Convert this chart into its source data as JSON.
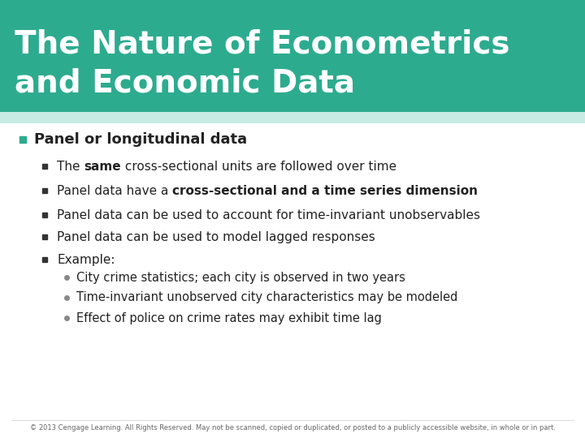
{
  "title_line1": "The Nature of Econometrics",
  "title_line2": "and Economic Data",
  "title_bg_color": "#2dab8f",
  "title_text_color": "#ffffff",
  "slide_bg_color": "#ffffff",
  "header_stripe_color": "#c8ebe4",
  "bullet_color": "#2dab8f",
  "sub_bullet_color": "#555555",
  "text_color": "#222222",
  "footer_text": "© 2013 Cengage Learning. All Rights Reserved. May not be scanned, copied or duplicated, or posted to a publicly accessible website, in whole or in part.",
  "main_bullet": "Panel or longitudinal data",
  "sub_bullets": [
    {
      "text": "The ",
      "bold_part": "same",
      "rest": " cross-sectional units are followed over time"
    },
    {
      "text": "Panel data have a ",
      "bold_part": "cross-sectional and a time series dimension",
      "rest": ""
    },
    {
      "text": "Panel data can be used to account for time-invariant unobservables",
      "bold_part": "",
      "rest": ""
    },
    {
      "text": "Panel data can be used to model lagged responses",
      "bold_part": "",
      "rest": ""
    },
    {
      "text": "Example:",
      "bold_part": "",
      "rest": ""
    }
  ],
  "sub_sub_bullets": [
    "City crime statistics; each city is observed in two years",
    "Time-invariant unobserved city characteristics may be modeled",
    "Effect of police on crime rates may exhibit time lag"
  ]
}
